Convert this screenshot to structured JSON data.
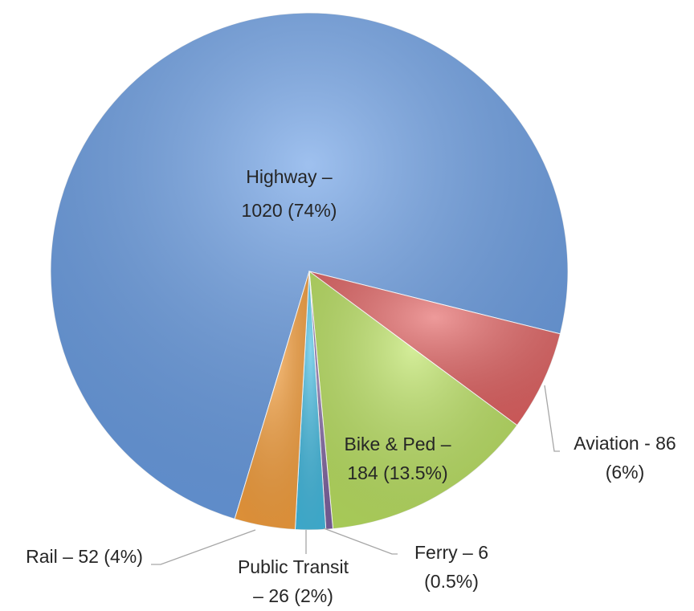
{
  "chart_data": {
    "type": "pie",
    "values": [
      1020,
      86,
      184,
      6,
      26,
      52
    ],
    "value_labels": [
      [
        "Highway –",
        "1020 (74%)"
      ],
      [
        "Aviation - 86",
        "(6%)"
      ],
      [
        "Bike & Ped –",
        "184 (13.5%)"
      ],
      [
        "Ferry – 6",
        "(0.5%)"
      ],
      [
        "Public Transit",
        "– 26 (2%)"
      ],
      [
        "Rail – 52 (4%)"
      ]
    ],
    "colors": [
      "#6b9fe6",
      "#e46464",
      "#bde463",
      "#8064a2",
      "#45bde3",
      "#f9a23f"
    ]
  }
}
